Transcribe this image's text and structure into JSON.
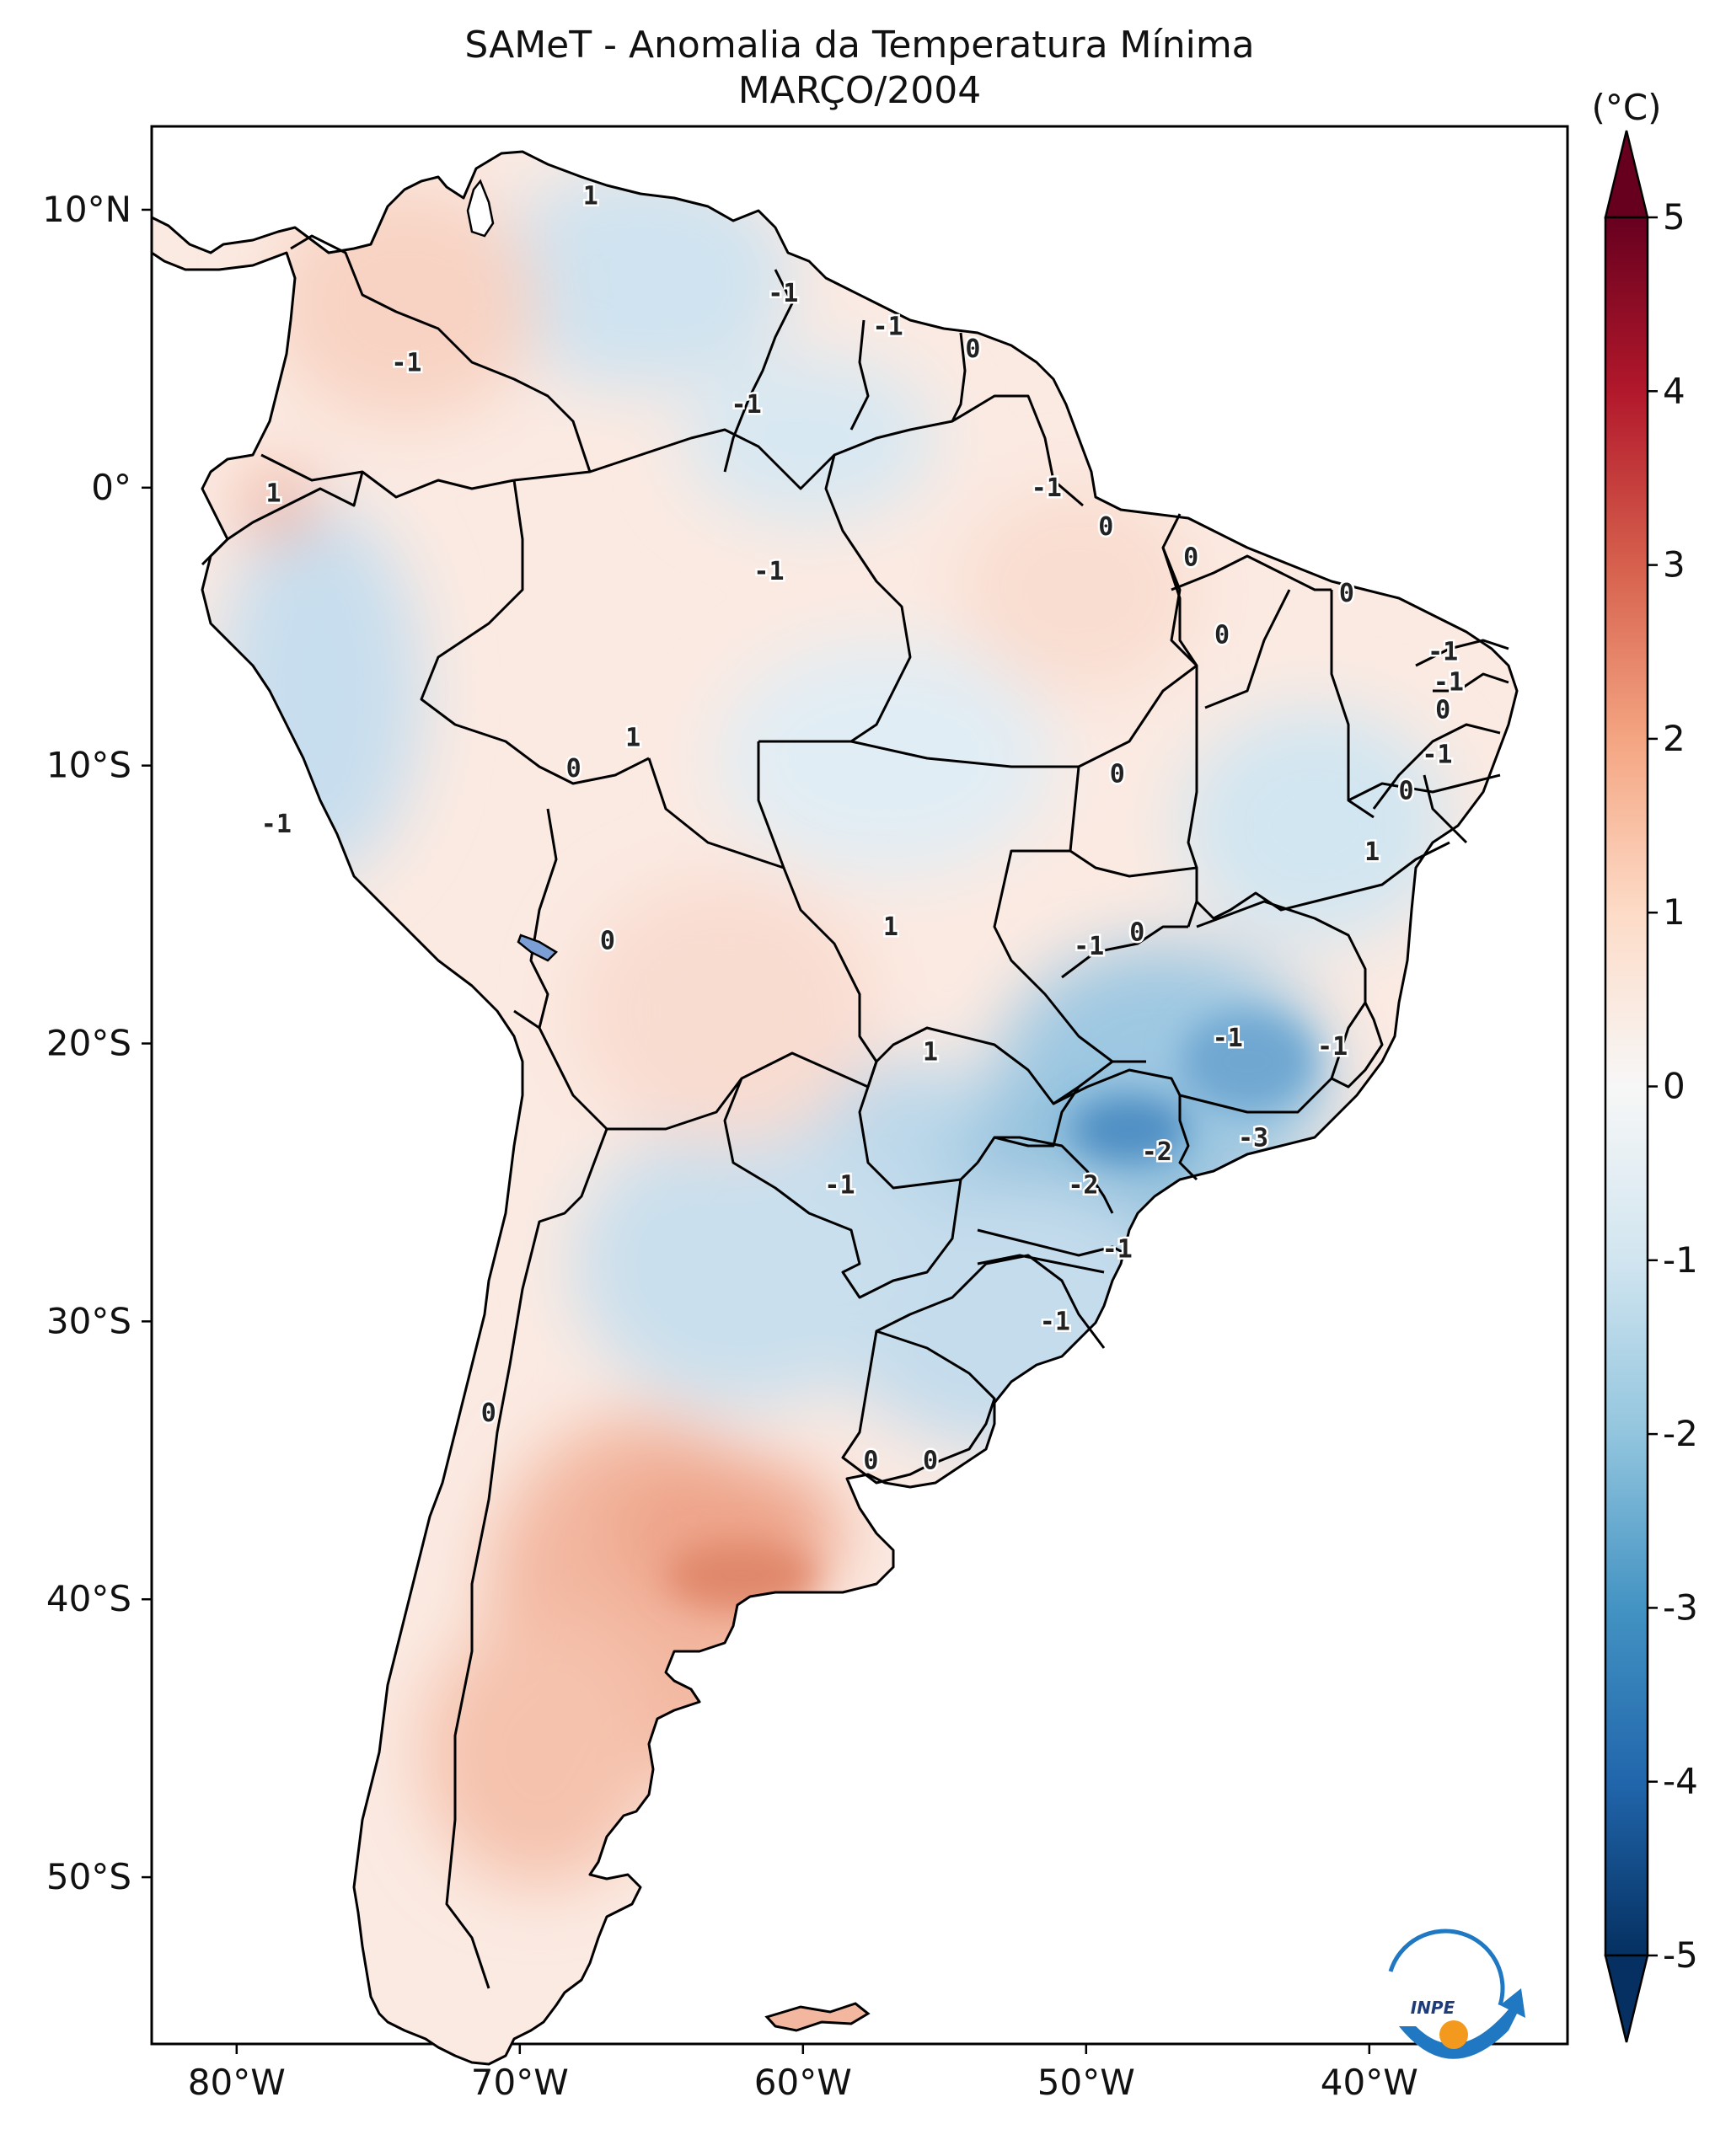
{
  "title": {
    "line1": "SAMeT - Anomalia da Temperatura Mínima",
    "line2": "MARÇO/2004"
  },
  "colorbar": {
    "unit": "(°C)",
    "ticks": [
      "5",
      "4",
      "3",
      "2",
      "1",
      "0",
      "-1",
      "-2",
      "-3",
      "-4",
      "-5"
    ],
    "range": [
      -5,
      5
    ],
    "colormap": "RdBu_r",
    "extend": "both"
  },
  "axes": {
    "lon_ticks": [
      "80°W",
      "70°W",
      "60°W",
      "50°W",
      "40°W"
    ],
    "lat_ticks": [
      "10°N",
      "0°",
      "10°S",
      "20°S",
      "30°S",
      "40°S",
      "50°S"
    ],
    "lon_range": [
      -83,
      -33
    ],
    "lat_range": [
      -56,
      13
    ]
  },
  "contour_labels": [
    {
      "text": "1",
      "lon": -67.5,
      "lat": 10.5
    },
    {
      "text": "-1",
      "lon": -60.7,
      "lat": 7.0
    },
    {
      "text": "-1",
      "lon": -57.0,
      "lat": 5.8
    },
    {
      "text": "0",
      "lon": -54.0,
      "lat": 5.0
    },
    {
      "text": "-1",
      "lon": -74.0,
      "lat": 4.5
    },
    {
      "text": "-1",
      "lon": -62.0,
      "lat": 3.0
    },
    {
      "text": "1",
      "lon": -78.7,
      "lat": -0.2
    },
    {
      "text": "-1",
      "lon": -51.4,
      "lat": 0.0
    },
    {
      "text": "0",
      "lon": -49.3,
      "lat": -1.4
    },
    {
      "text": "-1",
      "lon": -61.2,
      "lat": -3.0
    },
    {
      "text": "0",
      "lon": -46.3,
      "lat": -2.5
    },
    {
      "text": "0",
      "lon": -45.2,
      "lat": -5.3
    },
    {
      "text": "0",
      "lon": -40.8,
      "lat": -3.8
    },
    {
      "text": "-1",
      "lon": -37.4,
      "lat": -5.9
    },
    {
      "text": "-1",
      "lon": -37.2,
      "lat": -7.0
    },
    {
      "text": "0",
      "lon": -37.4,
      "lat": -8.0
    },
    {
      "text": "-1",
      "lon": -37.6,
      "lat": -9.6
    },
    {
      "text": "0",
      "lon": -38.7,
      "lat": -10.9
    },
    {
      "text": "1",
      "lon": -66.0,
      "lat": -9.0
    },
    {
      "text": "0",
      "lon": -68.1,
      "lat": -10.1
    },
    {
      "text": "0",
      "lon": -48.9,
      "lat": -10.3
    },
    {
      "text": "-1",
      "lon": -78.6,
      "lat": -12.1
    },
    {
      "text": "1",
      "lon": -39.9,
      "lat": -13.1
    },
    {
      "text": "1",
      "lon": -56.9,
      "lat": -15.8
    },
    {
      "text": "0",
      "lon": -48.2,
      "lat": -16.0
    },
    {
      "text": "-1",
      "lon": -49.9,
      "lat": -16.5
    },
    {
      "text": "0",
      "lon": -66.9,
      "lat": -16.3
    },
    {
      "text": "1",
      "lon": -55.5,
      "lat": -20.3
    },
    {
      "text": "-1",
      "lon": -45.0,
      "lat": -19.8
    },
    {
      "text": "-1",
      "lon": -41.3,
      "lat": -20.1
    },
    {
      "text": "-3",
      "lon": -44.1,
      "lat": -23.4
    },
    {
      "text": "-2",
      "lon": -47.5,
      "lat": -23.9
    },
    {
      "text": "-1",
      "lon": -58.7,
      "lat": -25.1
    },
    {
      "text": "-2",
      "lon": -50.1,
      "lat": -25.1
    },
    {
      "text": "-1",
      "lon": -48.9,
      "lat": -27.4
    },
    {
      "text": "-1",
      "lon": -51.1,
      "lat": -30.0
    },
    {
      "text": "0",
      "lon": -71.1,
      "lat": -33.3
    },
    {
      "text": "0",
      "lon": -57.6,
      "lat": -35.0
    },
    {
      "text": "0",
      "lon": -55.5,
      "lat": -35.0
    }
  ],
  "logo": {
    "text": "INPE",
    "colors": {
      "blue": "#1f78c1",
      "orange": "#f39a1e"
    }
  },
  "colors": {
    "warm": "#d6604d",
    "cold": "#4393c3",
    "neutral": "#f7f7f7"
  }
}
